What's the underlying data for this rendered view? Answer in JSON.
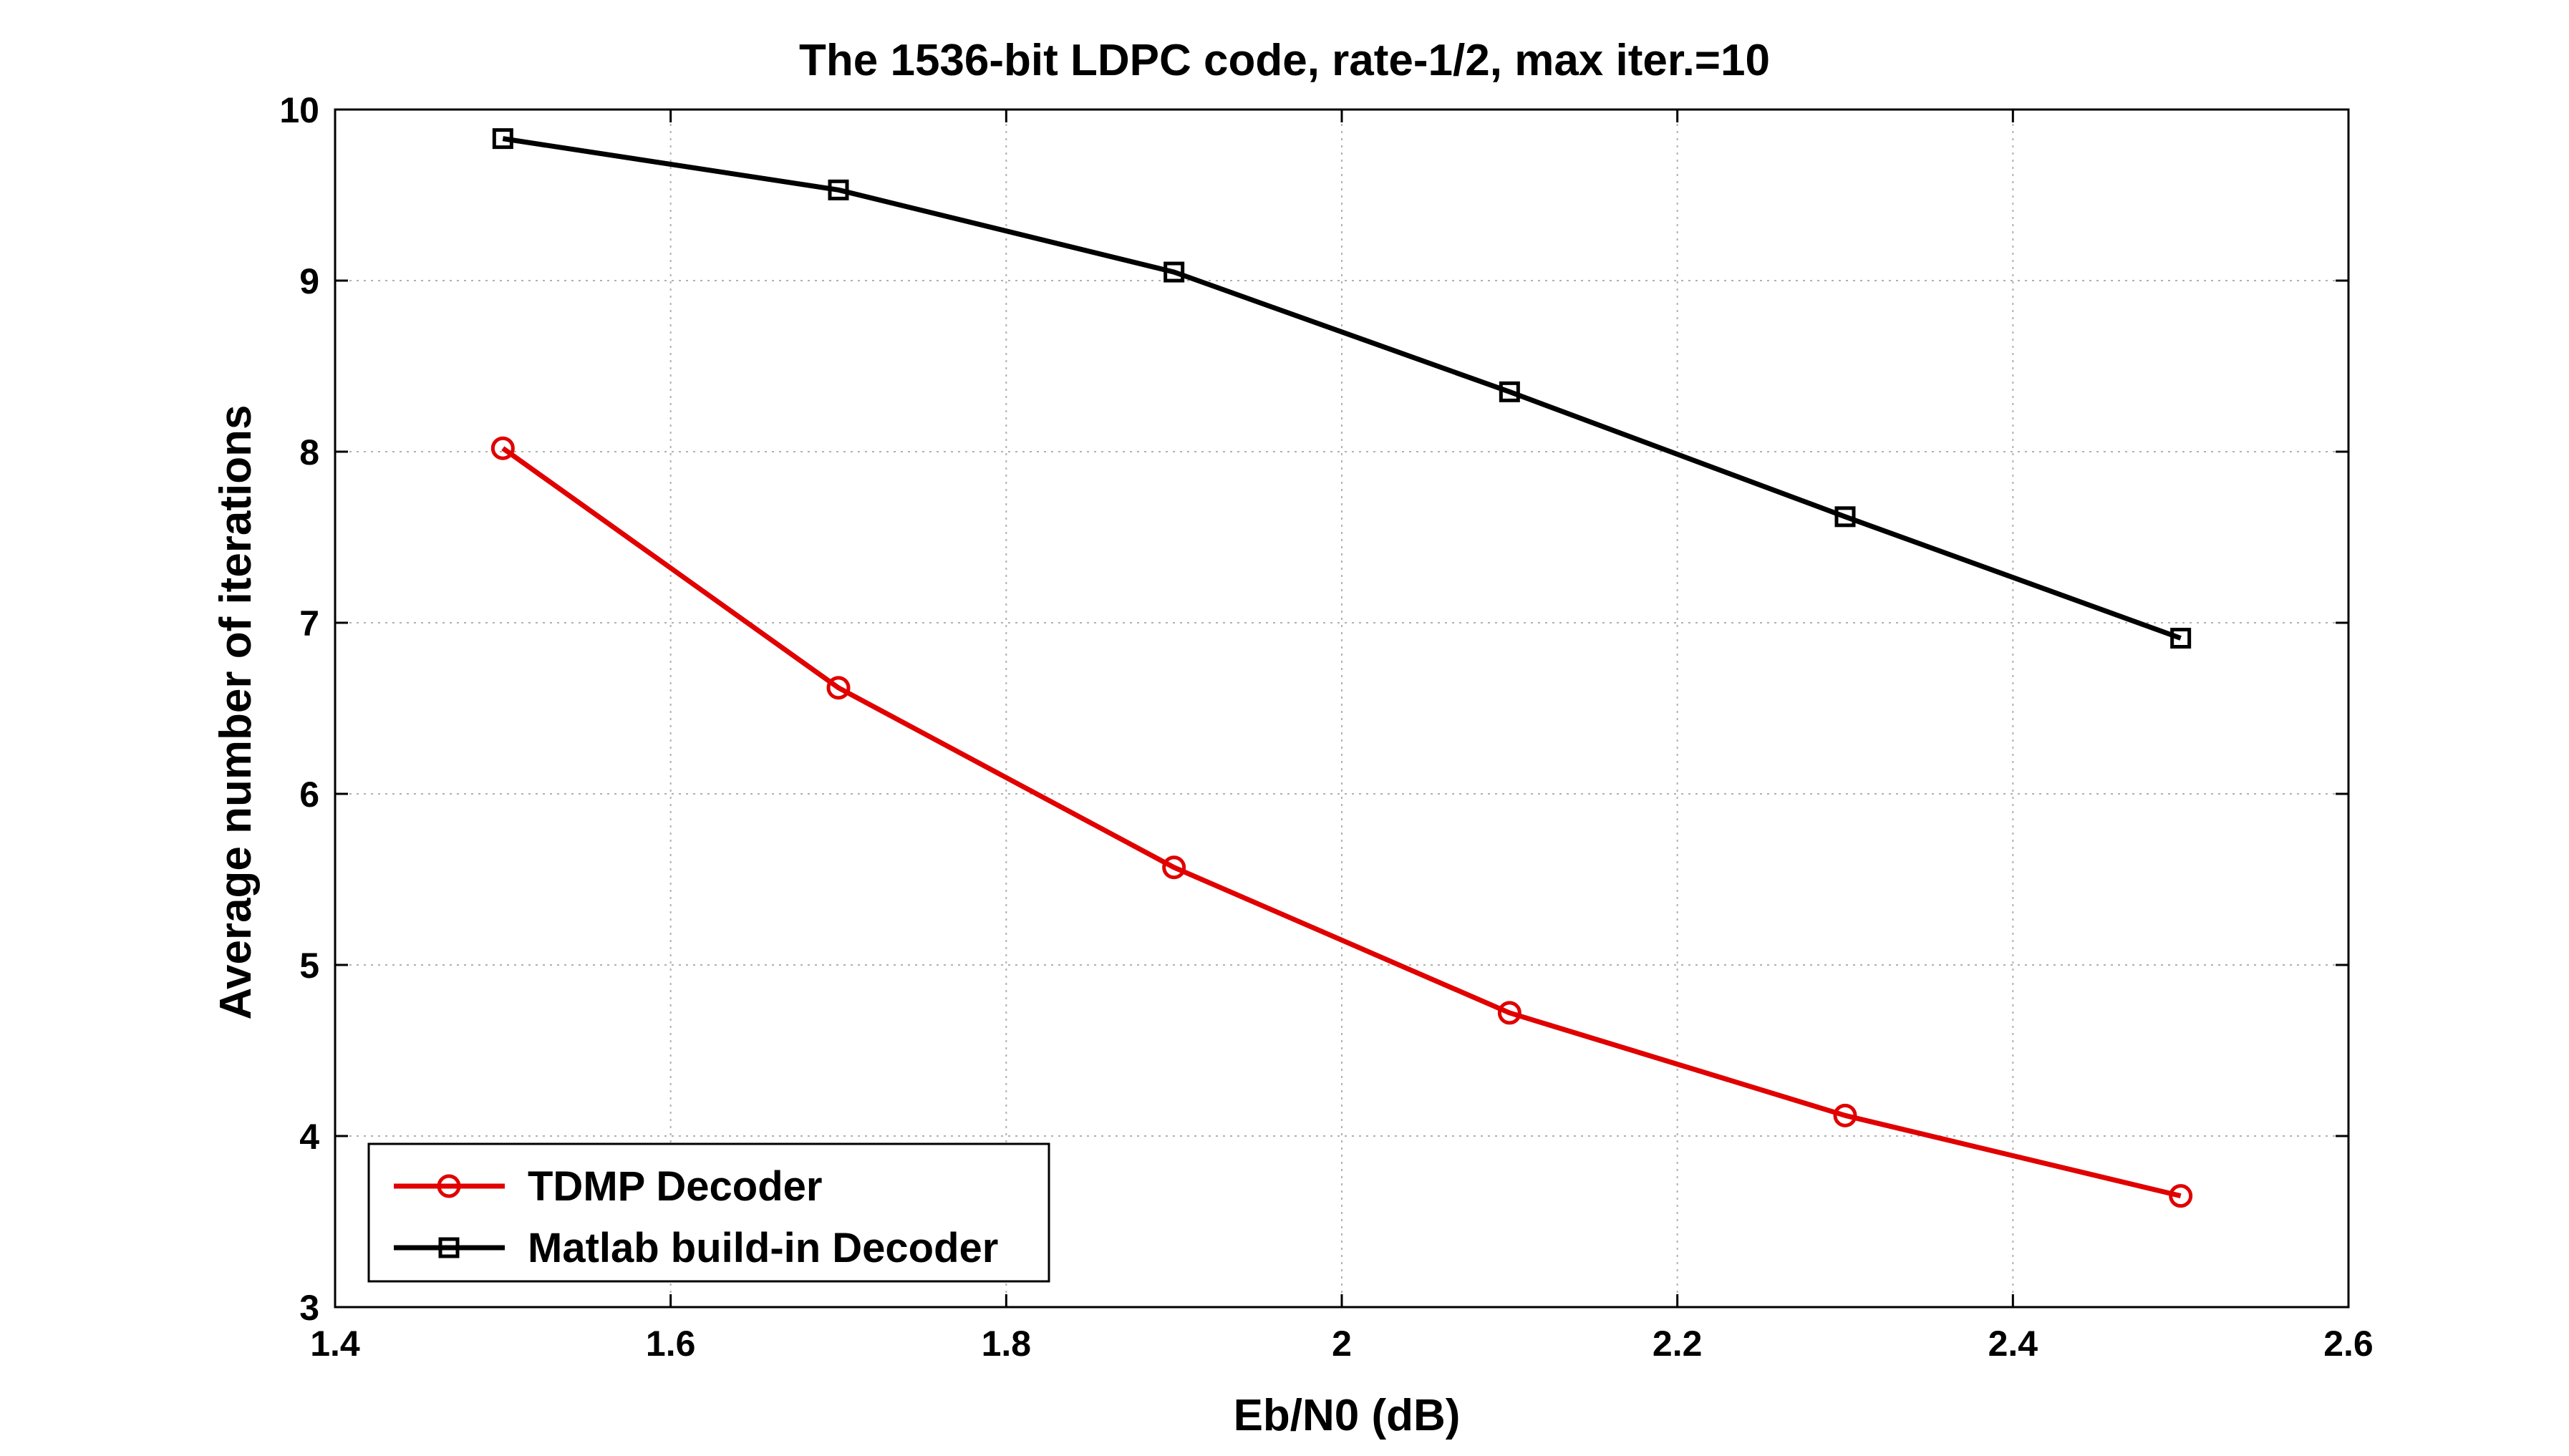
{
  "chart_data": {
    "type": "line",
    "title": "The 1536-bit LDPC code, rate-1/2, max iter.=10",
    "xlabel": "Eb/N0 (dB)",
    "ylabel": "Average number of iterations",
    "xlim": [
      1.4,
      2.6
    ],
    "ylim": [
      3,
      10
    ],
    "xticks": [
      1.4,
      1.6,
      1.8,
      2,
      2.2,
      2.4,
      2.6
    ],
    "xtick_labels": [
      "1.4",
      "1.6",
      "1.8",
      "2",
      "2.2",
      "2.4",
      "2.6"
    ],
    "yticks": [
      3,
      4,
      5,
      6,
      7,
      8,
      9,
      10
    ],
    "ytick_labels": [
      "3",
      "4",
      "5",
      "6",
      "7",
      "8",
      "9",
      "10"
    ],
    "grid": true,
    "legend_position": "bottom-left",
    "x": [
      1.5,
      1.7,
      1.9,
      2.1,
      2.3,
      2.5
    ],
    "series": [
      {
        "name": "TDMP Decoder",
        "color": "#e00000",
        "marker": "circle",
        "values": [
          8.02,
          6.62,
          5.57,
          4.72,
          4.12,
          3.65
        ]
      },
      {
        "name": "Matlab build-in Decoder",
        "color": "#000000",
        "marker": "square",
        "values": [
          9.83,
          9.53,
          9.05,
          8.35,
          7.62,
          6.91
        ]
      }
    ]
  }
}
